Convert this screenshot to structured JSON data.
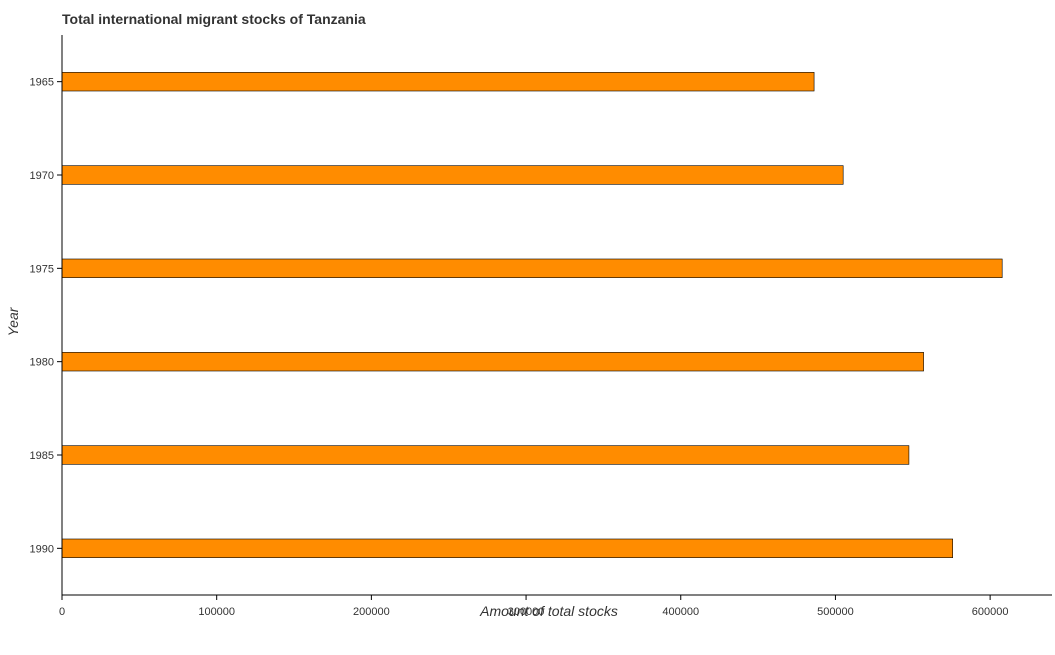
{
  "chart_data": {
    "type": "bar",
    "orientation": "horizontal",
    "title": "Total international migrant stocks of Tanzania",
    "xlabel": "Amount of total stocks",
    "ylabel": "Year",
    "categories": [
      "1965",
      "1970",
      "1975",
      "1980",
      "1985",
      "1990"
    ],
    "values": [
      486200,
      505000,
      607800,
      557000,
      547500,
      575800
    ],
    "xlim": [
      0,
      640000
    ],
    "xticks": [
      0,
      100000,
      200000,
      300000,
      400000,
      500000,
      600000
    ],
    "xtick_labels": [
      "0",
      "100000",
      "200000",
      "300000",
      "400000",
      "500000",
      "600000"
    ],
    "bar_color": "#ff8c00",
    "bar_edge_color": "#000000",
    "grid": false
  }
}
